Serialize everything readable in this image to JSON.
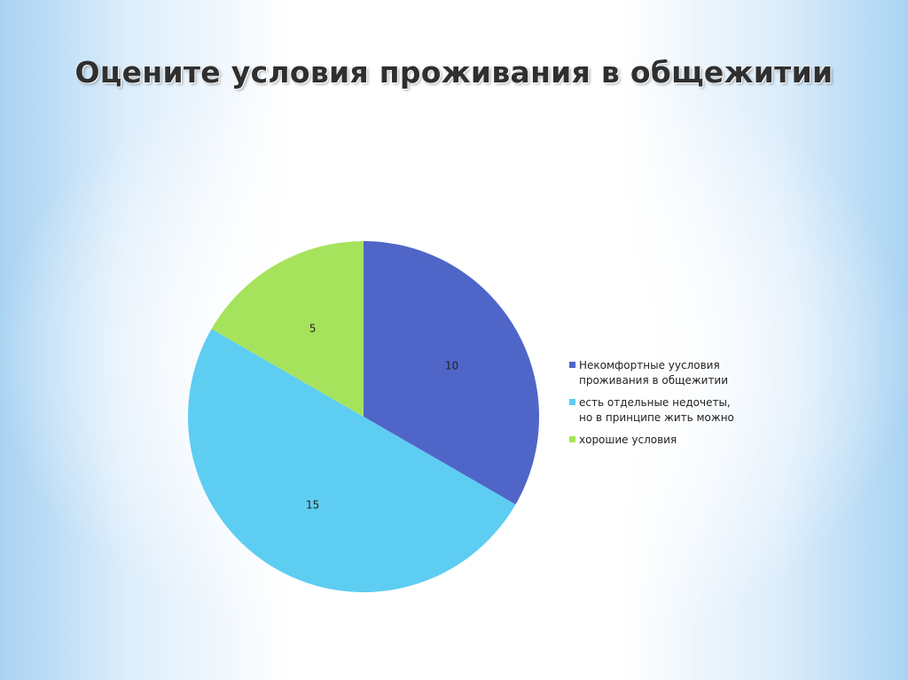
{
  "slide": {
    "title": "Оцените условия проживания в общежитии"
  },
  "chart_data": {
    "type": "pie",
    "categories": [
      "Некомфортные уусловия проживания в общежитии",
      "есть отдельные недочеты, но в принципе жить можно",
      "хорошие условия"
    ],
    "values": [
      10,
      15,
      5
    ],
    "data_labels": [
      "10",
      "15",
      "5"
    ],
    "legend_lines": [
      [
        "Некомфортные уусловия",
        "проживания в общежитии"
      ],
      [
        "есть отдельные недочеты,",
        "но в принципе жить можно"
      ],
      [
        "хорошие условия"
      ]
    ],
    "colors": [
      "#4f66c8",
      "#5ecdf2",
      "#a6e35c"
    ],
    "legend_position": "right",
    "start_angle": "top (12 o'clock), clockwise"
  }
}
